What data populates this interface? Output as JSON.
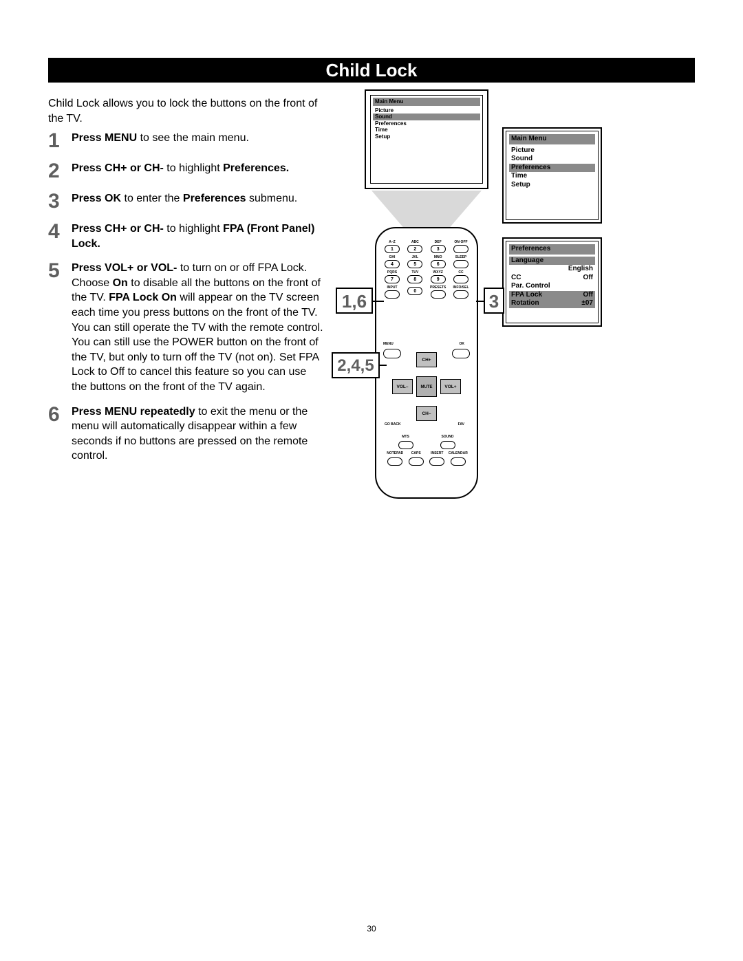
{
  "page_number": "30",
  "title": "Child Lock",
  "intro": "Child Lock allows you to lock the buttons on the front of the TV.",
  "steps": [
    {
      "n": "1",
      "runs": [
        {
          "b": true,
          "t": "Press MENU"
        },
        {
          "b": false,
          "t": " to see the main menu."
        }
      ]
    },
    {
      "n": "2",
      "runs": [
        {
          "b": true,
          "t": "Press CH+ or CH-"
        },
        {
          "b": false,
          "t": " to highlight "
        },
        {
          "b": true,
          "t": "Preferences."
        }
      ]
    },
    {
      "n": "3",
      "runs": [
        {
          "b": true,
          "t": "Press OK"
        },
        {
          "b": false,
          "t": " to enter the "
        },
        {
          "b": true,
          "t": "Preferences"
        },
        {
          "b": false,
          "t": " submenu."
        }
      ]
    },
    {
      "n": "4",
      "runs": [
        {
          "b": true,
          "t": "Press CH+ or CH-"
        },
        {
          "b": false,
          "t": " to highlight "
        },
        {
          "b": true,
          "t": "FPA (Front Panel) Lock."
        }
      ]
    },
    {
      "n": "5",
      "runs": [
        {
          "b": true,
          "t": "Press VOL+ or VOL-"
        },
        {
          "b": false,
          "t": " to turn on or off FPA Lock. Choose "
        },
        {
          "b": true,
          "t": "On"
        },
        {
          "b": false,
          "t": " to disable all the buttons on the front of the TV. "
        },
        {
          "b": true,
          "t": "FPA Lock On"
        },
        {
          "b": false,
          "t": " will appear on the TV screen each time you press buttons on the front of the TV. You can still operate the TV with the remote control. You can still use the POWER button on the front of the TV, but only to turn off the TV (not on). Set FPA Lock to Off to cancel this feature so you can use the buttons on the front of the TV again."
        }
      ]
    },
    {
      "n": "6",
      "runs": [
        {
          "b": true,
          "t": "Press MENU repeatedly"
        },
        {
          "b": false,
          "t": " to exit the menu or the menu will automatically disappear within a few seconds if no buttons are pressed on the remote control."
        }
      ]
    }
  ],
  "tv_menu": {
    "title": "Main Menu",
    "items": [
      "Picture",
      "Sound",
      "Preferences",
      "Time",
      "Setup"
    ],
    "highlighted_index": 1
  },
  "main_menu_box": {
    "title": "Main Menu",
    "items": [
      "Picture",
      "Sound",
      "Preferences",
      "Time",
      "Setup"
    ],
    "highlighted_index": 2
  },
  "pref_menu_box": {
    "title": "Preferences",
    "rows": [
      {
        "label": "Language",
        "value": "",
        "hi": true
      },
      {
        "label": "",
        "value": "English",
        "hi": false,
        "indent": true
      },
      {
        "label": "CC",
        "value": "Off",
        "hi": false
      },
      {
        "label": "Par. Control",
        "value": "",
        "hi": false
      },
      {
        "label": "FPA Lock",
        "value": "Off",
        "hi": true
      },
      {
        "label": "Rotation",
        "value": "±07",
        "hi": true
      }
    ]
  },
  "callouts": {
    "c16": "1,6",
    "c245": "2,4,5",
    "c3": "3"
  },
  "remote": {
    "rows": [
      [
        {
          "lbl": "A–Z",
          "d": "1"
        },
        {
          "lbl": "ABC",
          "d": "2"
        },
        {
          "lbl": "DEF",
          "d": "3"
        },
        {
          "lbl": "ON·OFF",
          "d": ""
        }
      ],
      [
        {
          "lbl": "GHI",
          "d": "4"
        },
        {
          "lbl": "JKL",
          "d": "5"
        },
        {
          "lbl": "MNO",
          "d": "6"
        },
        {
          "lbl": "SLEEP",
          "d": ""
        }
      ],
      [
        {
          "lbl": "PQRS",
          "d": "7"
        },
        {
          "lbl": "TUV",
          "d": "8"
        },
        {
          "lbl": "WXYZ",
          "d": "9"
        },
        {
          "lbl": "CC",
          "d": ""
        }
      ],
      [
        {
          "lbl": "INPUT",
          "d": ""
        },
        {
          "lbl": "",
          "d": "0"
        },
        {
          "lbl": "PRESETS",
          "d": ""
        },
        {
          "lbl": "INFO/SEL",
          "d": ""
        }
      ]
    ],
    "nav": {
      "up": "CH+",
      "down": "CH–",
      "left": "VOL–",
      "right": "VOL+",
      "mid": "MUTE"
    },
    "menu_lbl": "MENU",
    "ok_lbl": "OK",
    "goback": "GO BACK",
    "fav": "FAV",
    "bottom": [
      {
        "labels": [
          "MTS",
          "SOUND"
        ],
        "count": 2
      },
      {
        "labels": [
          "NOTEPAD",
          "CAPS",
          "INSERT",
          "CALENDAR"
        ],
        "count": 4
      }
    ]
  },
  "colors": {
    "header_bg": "#000000",
    "header_fg": "#ffffff",
    "num_gray": "#5f5f5f",
    "menu_hi": "#8a8a8a"
  }
}
